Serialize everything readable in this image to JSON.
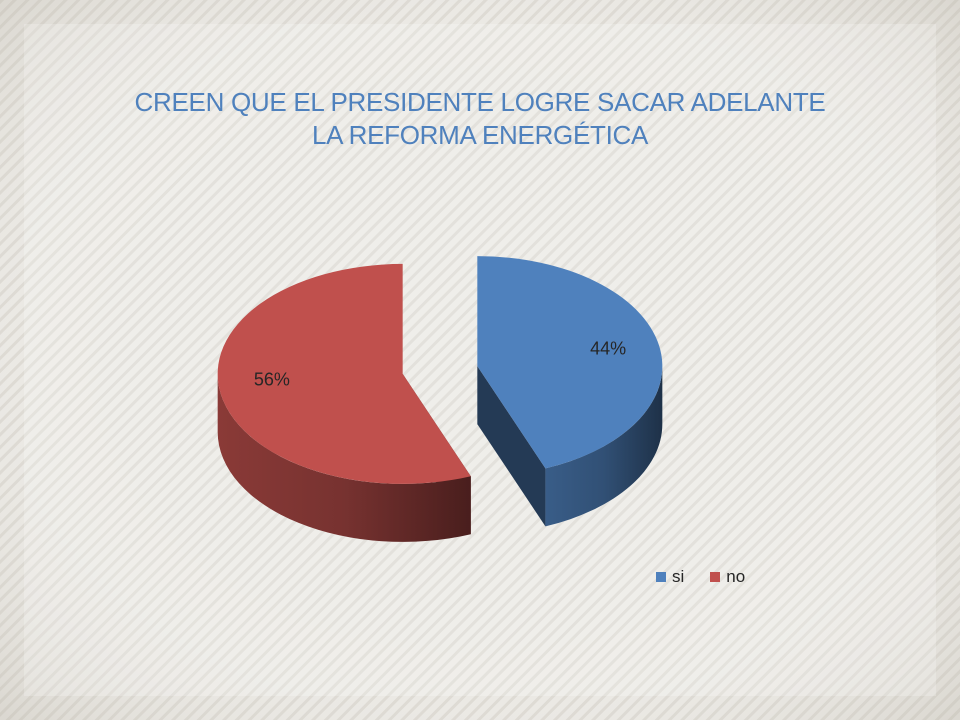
{
  "chart_data": {
    "type": "pie",
    "title": "CREEN QUE EL PRESIDENTE LOGRE SACAR ADELANTE\nLA REFORMA ENERGÉTICA",
    "categories": [
      "si",
      "no"
    ],
    "values": [
      44,
      56
    ],
    "data_labels": [
      "44%",
      "56%"
    ],
    "colors": [
      "#4f81bd",
      "#c0504d"
    ],
    "style": "3d-exploded",
    "legend_placement": "bottom-right"
  }
}
